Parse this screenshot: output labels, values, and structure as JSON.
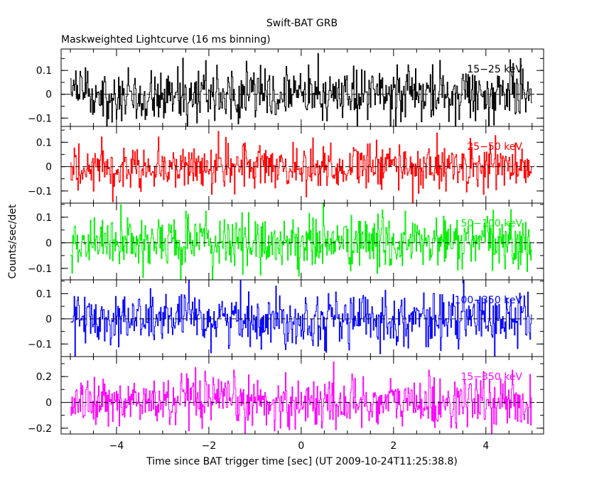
{
  "title": "Swift-BAT GRB",
  "subtitle": "Maskweighted Lightcurve (16 ms binning)",
  "xlabel": "Time since BAT trigger time [sec] (UT 2009-10-24T11:25:38.8)",
  "ylabel": "Counts/sec/det",
  "chart_data": {
    "type": "line",
    "title": "Swift-BAT GRB",
    "subtitle": "Maskweighted Lightcurve (16 ms binning)",
    "xlabel": "Time since BAT trigger time [sec] (UT 2009-10-24T11:25:38.8)",
    "ylabel": "Counts/sec/det",
    "xlim": [
      -5.2,
      5.25
    ],
    "data_x_range": [
      -5.0,
      5.0
    ],
    "bin_width_s": 0.016,
    "x_ticks": [
      -4,
      -2,
      0,
      2,
      4
    ],
    "x_tick_labels": [
      "−4",
      "−2",
      "0",
      "2",
      "4"
    ],
    "series": [
      {
        "name": "15-25 keV",
        "label": "15−25 keV",
        "color": "#000000",
        "ylim": [
          -0.135,
          0.19
        ],
        "noise_sigma": 0.055,
        "yticks": [
          -0.1,
          0,
          0.1
        ],
        "ytick_labels": [
          "−0.1",
          "0",
          "0.1"
        ]
      },
      {
        "name": "25-50 keV",
        "label": "25−50 keV",
        "color": "#ff0000",
        "ylim": [
          -0.15,
          0.165
        ],
        "noise_sigma": 0.05,
        "yticks": [
          -0.1,
          0,
          0.1
        ],
        "ytick_labels": [
          "−0.1",
          "0",
          "0.1"
        ]
      },
      {
        "name": "50-100 keV",
        "label": "50−100 keV",
        "color": "#00ee00",
        "ylim": [
          -0.145,
          0.155
        ],
        "noise_sigma": 0.052,
        "yticks": [
          -0.1,
          0,
          0.1
        ],
        "ytick_labels": [
          "−0.1",
          "0",
          "0.1"
        ]
      },
      {
        "name": "100-350 keV",
        "label": "100−350 keV",
        "color": "#0000ff",
        "ylim": [
          -0.15,
          0.155
        ],
        "noise_sigma": 0.052,
        "yticks": [
          -0.1,
          0,
          0.1
        ],
        "ytick_labels": [
          "−0.1",
          "0",
          "0.1"
        ]
      },
      {
        "name": "15-350 keV",
        "label": "15−350 keV",
        "color": "#ff00ff",
        "ylim": [
          -0.245,
          0.355
        ],
        "noise_sigma": 0.1,
        "yticks": [
          -0.2,
          0,
          0.2
        ],
        "ytick_labels": [
          "−0.2",
          "0",
          "0.2"
        ]
      }
    ]
  }
}
